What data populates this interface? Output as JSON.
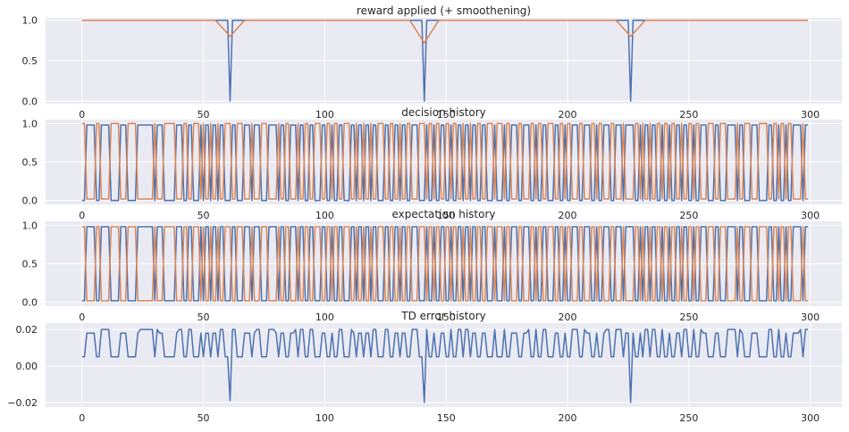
{
  "chart_data": [
    {
      "type": "line",
      "title": "reward applied (+ smoothening)",
      "xlim": [
        -15,
        313
      ],
      "ylim": [
        -0.03,
        1.03
      ],
      "xticks": [
        0,
        50,
        100,
        150,
        200,
        250,
        300
      ],
      "yticks": [
        0.0,
        0.5,
        1.0
      ],
      "ytick_labels": [
        "0.0",
        "0.5",
        "1.0"
      ],
      "grid": true,
      "series": [
        {
          "color": "#4c72b0",
          "kind": "reward",
          "x_range": [
            0,
            299
          ],
          "dips": [
            61,
            141,
            226
          ]
        },
        {
          "color": "#dd8452",
          "kind": "smoothed",
          "x_range": [
            0,
            299
          ],
          "dips": [
            [
              61,
              0.8
            ],
            [
              141,
              0.72
            ],
            [
              226,
              0.8
            ]
          ]
        }
      ]
    },
    {
      "type": "line",
      "title": "decision history",
      "xlim": [
        -15,
        313
      ],
      "ylim": [
        -0.05,
        1.05
      ],
      "xticks": [
        0,
        50,
        100,
        150,
        200,
        250,
        300
      ],
      "yticks": [
        0.0,
        0.5,
        1.0
      ],
      "ytick_labels": [
        "0.0",
        "0.5",
        "1.0"
      ],
      "grid": true,
      "series": [
        {
          "color": "#4c72b0",
          "kind": "binary",
          "values": [
            0,
            0.98
          ]
        },
        {
          "color": "#dd8452",
          "kind": "binary-complement",
          "values": [
            0.02,
            1
          ]
        }
      ]
    },
    {
      "type": "line",
      "title": "expectation history",
      "xlim": [
        -15,
        313
      ],
      "ylim": [
        -0.05,
        1.05
      ],
      "xticks": [
        0,
        50,
        100,
        150,
        200,
        250,
        300
      ],
      "yticks": [
        0.0,
        0.5,
        1.0
      ],
      "ytick_labels": [
        "0.0",
        "0.5",
        "1.0"
      ],
      "grid": true,
      "series": [
        {
          "color": "#4c72b0",
          "kind": "binary",
          "values": [
            0.02,
            0.98
          ]
        },
        {
          "color": "#dd8452",
          "kind": "binary-complement",
          "values": [
            0.02,
            0.98
          ]
        }
      ]
    },
    {
      "type": "line",
      "title": "TD error history",
      "xlim": [
        -15,
        313
      ],
      "ylim": [
        -0.0225,
        0.0235
      ],
      "xticks": [
        0,
        50,
        100,
        150,
        200,
        250,
        300
      ],
      "yticks": [
        -0.02,
        0.0,
        0.02
      ],
      "ytick_labels": [
        "−0.02",
        "0.00",
        "0.02"
      ],
      "grid": true,
      "series": [
        {
          "color": "#4c72b0",
          "kind": "td",
          "values": [
            0.005,
            0.018,
            0.02
          ],
          "dips": [
            [
              61,
              -0.019
            ],
            [
              141,
              -0.02
            ],
            [
              226,
              -0.02
            ]
          ]
        }
      ]
    }
  ],
  "switch_points": [
    2,
    6,
    8,
    12,
    16,
    19,
    23,
    30,
    31,
    34,
    39,
    42,
    44,
    46,
    49,
    50,
    51,
    53,
    54,
    56,
    57,
    59,
    62,
    64,
    67,
    70,
    71,
    74,
    77,
    81,
    82,
    84,
    86,
    89,
    90,
    92,
    94,
    96,
    99,
    101,
    103,
    104,
    106,
    108,
    111,
    113,
    114,
    116,
    117,
    119,
    120,
    122,
    125,
    127,
    129,
    131,
    132,
    134,
    136,
    139,
    142,
    143,
    145,
    146,
    148,
    150,
    152,
    153,
    155,
    157,
    158,
    160,
    161,
    163,
    165,
    167,
    170,
    171,
    174,
    175,
    177,
    180,
    182,
    185,
    187,
    188,
    190,
    192,
    195,
    197,
    199,
    200,
    202,
    205,
    207,
    210,
    212,
    213,
    215,
    218,
    220,
    223,
    224,
    228,
    230,
    231,
    232,
    234,
    235,
    237,
    239,
    240,
    242,
    243,
    245,
    247,
    248,
    250,
    252,
    253,
    255,
    258,
    261,
    263,
    266,
    270,
    271,
    273,
    276,
    279,
    283,
    285,
    287,
    288,
    290,
    291,
    293,
    297,
    298
  ]
}
